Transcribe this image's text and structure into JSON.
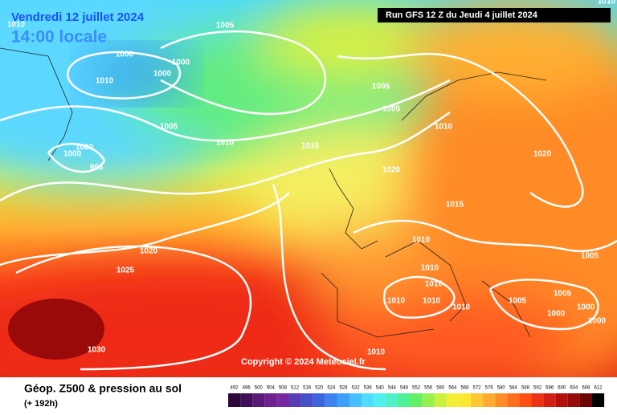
{
  "header": {
    "date": "Vendredi 12 juillet 2024",
    "time": "14:00 locale",
    "run": "Run GFS 12 Z du Jeudi 4 juillet 2024"
  },
  "isobar_labels": [
    1010,
    1010,
    1005,
    1000,
    1000,
    1000,
    1010,
    1005,
    1005,
    1005,
    1010,
    1010,
    1015,
    1000,
    1000,
    1020,
    995,
    1020,
    1015,
    1010,
    1020,
    1005,
    1025,
    1010,
    1010,
    1005,
    1005,
    1010,
    1010,
    1000,
    1010,
    1000,
    1000,
    1030,
    1010
  ],
  "copyright": "Copyright © 2024 Meteociel.fr",
  "legend": {
    "title": "Géop. Z500 & pression au sol",
    "subtitle": "(+ 192h)",
    "scale": {
      "values": [
        492,
        496,
        500,
        504,
        508,
        512,
        516,
        520,
        524,
        528,
        532,
        536,
        540,
        544,
        548,
        552,
        556,
        560,
        564,
        568,
        572,
        576,
        580,
        584,
        588,
        592,
        596,
        600,
        604,
        608,
        612
      ],
      "colors": [
        "#2d0a3c",
        "#3f0f5a",
        "#5a1a78",
        "#6e2090",
        "#7828a0",
        "#5a3cb4",
        "#4650c8",
        "#3c64dc",
        "#3c82f0",
        "#3ca0ff",
        "#46beff",
        "#50dcff",
        "#50f0f0",
        "#50f0c8",
        "#50f096",
        "#64f064",
        "#96f050",
        "#c8f03c",
        "#f0f032",
        "#ffe632",
        "#ffc832",
        "#ffaa32",
        "#ff8c28",
        "#ff6e1e",
        "#ff5014",
        "#f03214",
        "#d21e14",
        "#b40f0f",
        "#960a0a",
        "#6e0505",
        "#000000"
      ]
    }
  }
}
